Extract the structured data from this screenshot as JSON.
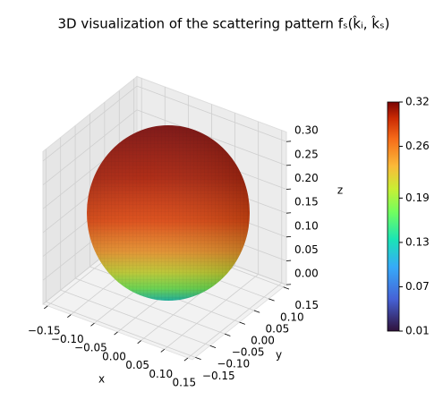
{
  "chart_data": {
    "type": "surface3d",
    "title": "3D visualization of the scattering pattern fₛ(k̂ᵢ, k̂ₛ)",
    "xlabel": "x",
    "ylabel": "y",
    "zlabel": "z",
    "xlim": [
      -0.16,
      0.16
    ],
    "ylim": [
      -0.16,
      0.16
    ],
    "zlim": [
      0,
      0.32
    ],
    "xticks": [
      {
        "value": -0.15,
        "label": "−0.15"
      },
      {
        "value": -0.1,
        "label": "−0.10"
      },
      {
        "value": -0.05,
        "label": "−0.05"
      },
      {
        "value": 0,
        "label": "0.00"
      },
      0.05,
      {
        "value": 0.1,
        "label": "0.10"
      },
      0.15
    ],
    "yticks": [
      {
        "value": -0.15,
        "label": "−0.15"
      },
      {
        "value": -0.1,
        "label": "−0.10"
      },
      {
        "value": -0.05,
        "label": "−0.05"
      },
      {
        "value": 0,
        "label": "0.00"
      },
      0.05,
      {
        "value": 0.1,
        "label": "0.10"
      },
      0.15
    ],
    "zticks": [
      {
        "value": 0,
        "label": "0.00"
      },
      0.05,
      {
        "value": 0.1,
        "label": "0.10"
      },
      0.15,
      {
        "value": 0.2,
        "label": "0.20"
      },
      0.25,
      {
        "value": 0.3,
        "label": "0.30"
      }
    ],
    "colormap": "turbo",
    "clim": [
      0.01,
      0.32
    ],
    "cticks": [
      0.01,
      0.07,
      0.13,
      0.19,
      0.26,
      0.32
    ],
    "grid": true
  }
}
